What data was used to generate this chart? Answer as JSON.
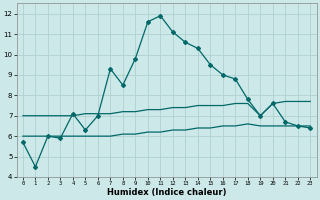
{
  "title": "",
  "xlabel": "Humidex (Indice chaleur)",
  "xlim": [
    -0.5,
    23.5
  ],
  "ylim": [
    4,
    12.5
  ],
  "xticks": [
    0,
    1,
    2,
    3,
    4,
    5,
    6,
    7,
    8,
    9,
    10,
    11,
    12,
    13,
    14,
    15,
    16,
    17,
    18,
    19,
    20,
    21,
    22,
    23
  ],
  "yticks": [
    4,
    5,
    6,
    7,
    8,
    9,
    10,
    11,
    12
  ],
  "bg_color": "#cce8e8",
  "grid_color": "#b0d0d0",
  "line_color": "#006868",
  "line1_x": [
    0,
    1,
    2,
    3,
    4,
    5,
    6,
    7,
    8,
    9,
    10,
    11,
    12,
    13,
    14,
    15,
    16,
    17,
    18,
    19,
    20,
    21,
    22,
    23
  ],
  "line1_y": [
    5.7,
    4.5,
    6.0,
    5.9,
    7.1,
    6.3,
    7.0,
    9.3,
    8.5,
    9.8,
    11.6,
    11.9,
    11.1,
    10.6,
    10.3,
    9.5,
    9.0,
    8.8,
    7.8,
    7.0,
    7.6,
    6.7,
    6.5,
    6.4
  ],
  "line2_x": [
    0,
    1,
    2,
    3,
    4,
    5,
    6,
    7,
    8,
    9,
    10,
    11,
    12,
    13,
    14,
    15,
    16,
    17,
    18,
    19,
    20,
    21,
    22,
    23
  ],
  "line2_y": [
    7.0,
    7.0,
    7.0,
    7.0,
    7.0,
    7.1,
    7.1,
    7.1,
    7.2,
    7.2,
    7.3,
    7.3,
    7.4,
    7.4,
    7.5,
    7.5,
    7.5,
    7.6,
    7.6,
    7.0,
    7.6,
    7.7,
    7.7,
    7.7
  ],
  "line3_x": [
    0,
    1,
    2,
    3,
    4,
    5,
    6,
    7,
    8,
    9,
    10,
    11,
    12,
    13,
    14,
    15,
    16,
    17,
    18,
    19,
    20,
    21,
    22,
    23
  ],
  "line3_y": [
    6.0,
    6.0,
    6.0,
    6.0,
    6.0,
    6.0,
    6.0,
    6.0,
    6.1,
    6.1,
    6.2,
    6.2,
    6.3,
    6.3,
    6.4,
    6.4,
    6.5,
    6.5,
    6.6,
    6.5,
    6.5,
    6.5,
    6.5,
    6.5
  ]
}
